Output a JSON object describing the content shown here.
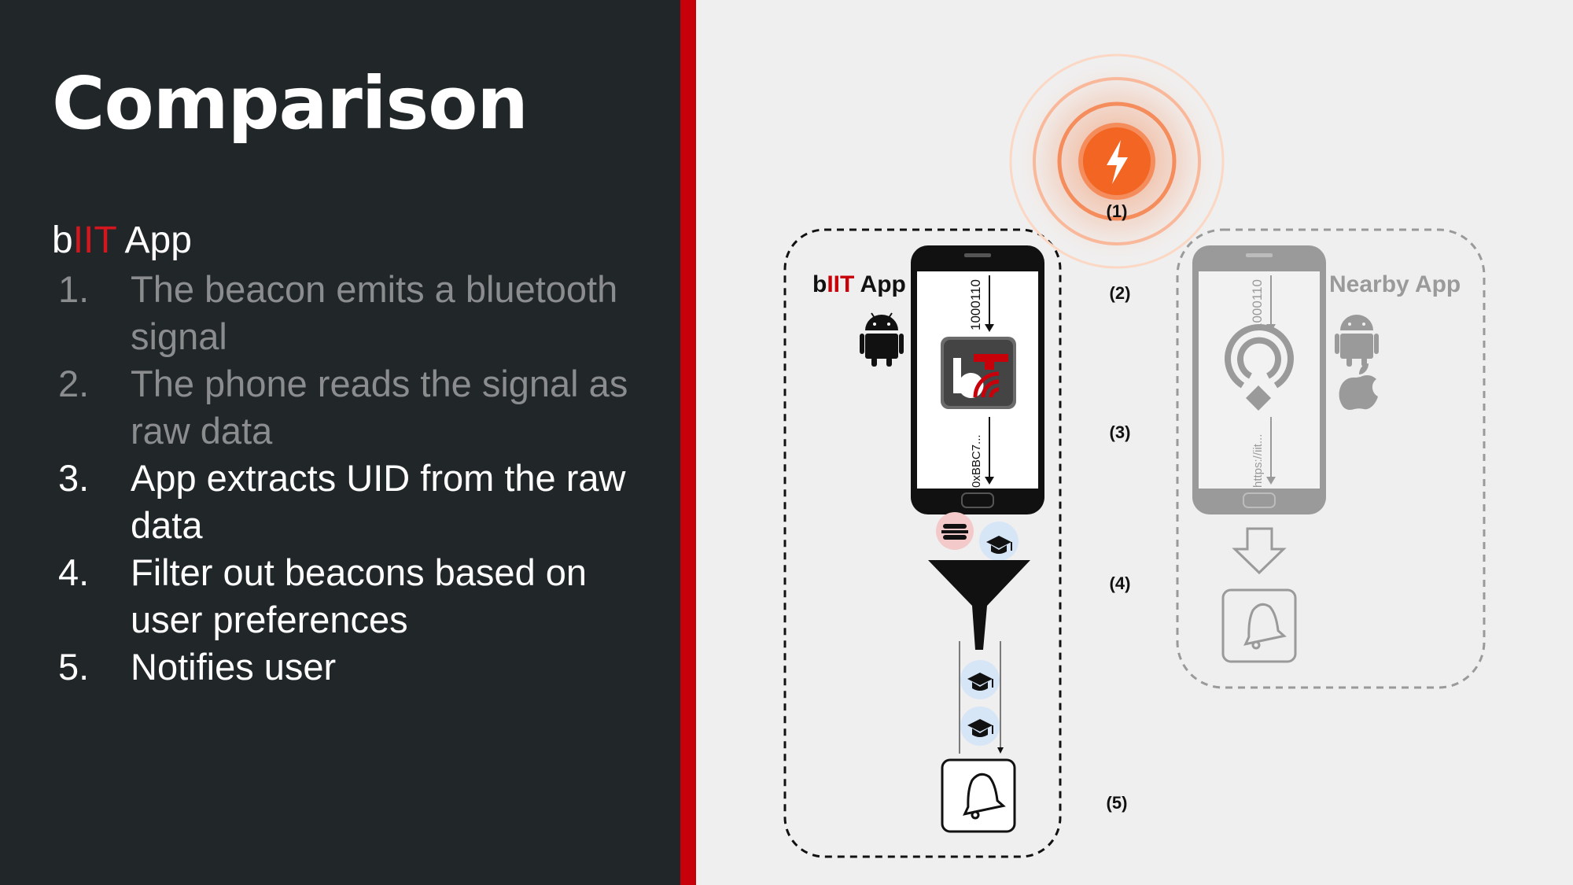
{
  "slide": {
    "title": "Comparison",
    "heading": {
      "prefix": "b",
      "highlight": "IIT",
      "suffix": " App"
    },
    "steps": [
      {
        "num": "1.",
        "text": "The beacon emits a bluetooth signal",
        "dimmed": true
      },
      {
        "num": "2.",
        "text": "The phone reads the signal as raw data",
        "dimmed": true
      },
      {
        "num": "3.",
        "text": "App extracts UID from the raw data",
        "dimmed": false
      },
      {
        "num": "4.",
        "text": "Filter out beacons based on user preferences",
        "dimmed": false
      },
      {
        "num": "5.",
        "text": "Notifies user",
        "dimmed": false
      }
    ]
  },
  "diagram": {
    "step_labels": [
      "(1)",
      "(2)",
      "(3)",
      "(4)",
      "(5)"
    ],
    "left_app": {
      "prefix": "b",
      "highlight": "IIT",
      "suffix": " App",
      "raw_bits": "1000110",
      "uid": "0xBBC7..."
    },
    "right_app": {
      "label": "Nearby App",
      "raw_bits": "1000110",
      "url": "https://iit..."
    },
    "colors": {
      "accent_red": "#c8000a",
      "beacon_orange": "#f26522",
      "gray": "#9a9a9a"
    }
  }
}
